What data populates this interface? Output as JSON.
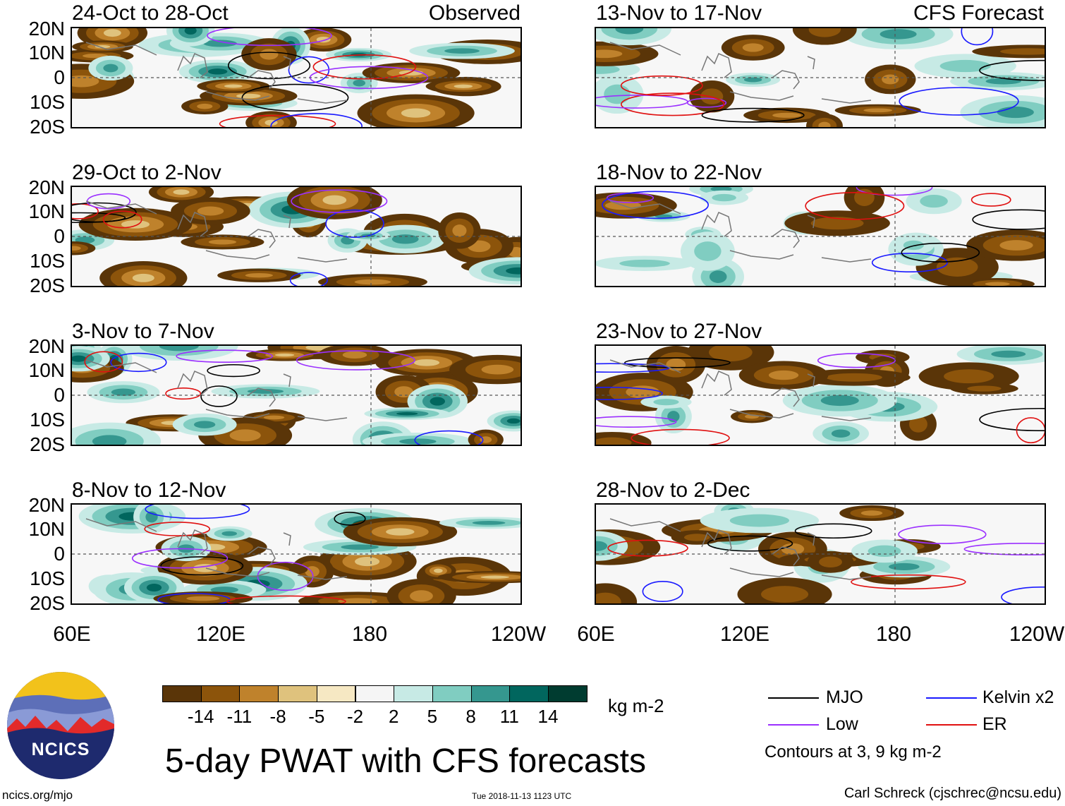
{
  "header": {
    "observed_label": "Observed",
    "forecast_label": "CFS Forecast"
  },
  "panels": [
    {
      "title": "24-Oct to 28-Oct"
    },
    {
      "title": "29-Oct to 2-Nov"
    },
    {
      "title": "3-Nov to 7-Nov"
    },
    {
      "title": "8-Nov to 12-Nov"
    },
    {
      "title": "13-Nov to 17-Nov"
    },
    {
      "title": "18-Nov to 22-Nov"
    },
    {
      "title": "23-Nov to 27-Nov"
    },
    {
      "title": "28-Nov to 2-Dec"
    }
  ],
  "axes": {
    "lat_ticks": [
      "20N",
      "10N",
      "0",
      "10S",
      "20S"
    ],
    "lon_ticks": [
      "60E",
      "120E",
      "180",
      "120W"
    ]
  },
  "colorbar": {
    "units": "kg m-2",
    "labels": [
      "-14",
      "-11",
      "-8",
      "-5",
      "-2",
      "2",
      "5",
      "8",
      "11",
      "14"
    ],
    "colors": [
      "#5a3508",
      "#8c540b",
      "#bf822c",
      "#dfc27d",
      "#f6e8c3",
      "#f5f5f5",
      "#c7eae5",
      "#80cdc1",
      "#35978f",
      "#01665e",
      "#003c30"
    ]
  },
  "legend": {
    "items": [
      {
        "label": "MJO",
        "color": "#000000"
      },
      {
        "label": "Kelvin x2",
        "color": "#1a1aff"
      },
      {
        "label": "Low",
        "color": "#9b30ff"
      },
      {
        "label": "ER",
        "color": "#e01010"
      }
    ],
    "note": "Contours at 3, 9 kg m-2"
  },
  "title": "5-day PWAT with CFS forecasts",
  "logo_text": "NCICS",
  "footer": {
    "left": "ncics.org/mjo",
    "timestamp": "Tue 2018-11-13 1123 UTC",
    "credit": "Carl Schreck (cjschrec@ncsu.edu)"
  }
}
